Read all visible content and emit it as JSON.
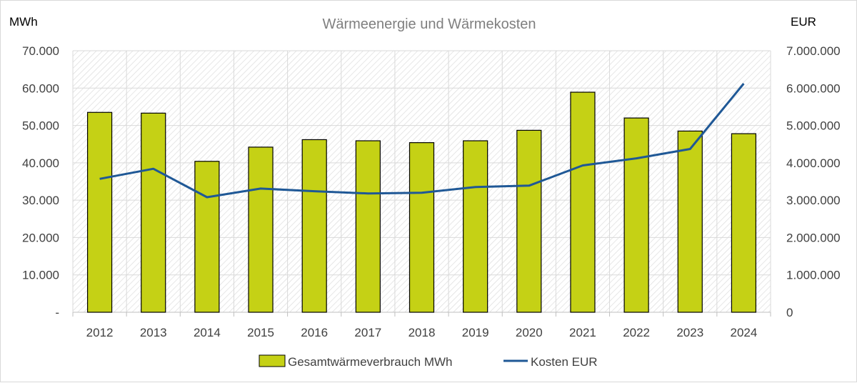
{
  "chart_data": {
    "type": "bar",
    "title": "Wärmeenergie und Wärmekosten",
    "y_left_unit": "MWh",
    "y_right_unit": "EUR",
    "categories": [
      "2012",
      "2013",
      "2014",
      "2015",
      "2016",
      "2017",
      "2018",
      "2019",
      "2020",
      "2021",
      "2022",
      "2023",
      "2024"
    ],
    "series": [
      {
        "name": "Gesamtwärmeverbrauch MWh",
        "type": "bar",
        "axis": "left",
        "values": [
          53500,
          53300,
          40400,
          44200,
          46200,
          45900,
          45400,
          45900,
          48700,
          58900,
          52000,
          48500,
          47800
        ]
      },
      {
        "name": "Kosten EUR",
        "type": "line",
        "axis": "right",
        "values": [
          3570000,
          3840000,
          3080000,
          3310000,
          3240000,
          3180000,
          3200000,
          3350000,
          3390000,
          3930000,
          4120000,
          4370000,
          6120000
        ]
      }
    ],
    "y_left_lim": [
      0,
      70000
    ],
    "y_left_ticks": [
      "-",
      "10.000",
      "20.000",
      "30.000",
      "40.000",
      "50.000",
      "60.000",
      "70.000"
    ],
    "y_right_lim": [
      0,
      7000000
    ],
    "y_right_ticks": [
      "0",
      "1.000.000",
      "2.000.000",
      "3.000.000",
      "4.000.000",
      "5.000.000",
      "6.000.000",
      "7.000.000"
    ],
    "grid": true,
    "legend": "bottom",
    "colors": {
      "bar": "#c5d115",
      "bar_edge": "#000000",
      "line": "#1f5896",
      "grid": "#d9d9d9",
      "plot_hatch": "#d6d6d6"
    }
  }
}
